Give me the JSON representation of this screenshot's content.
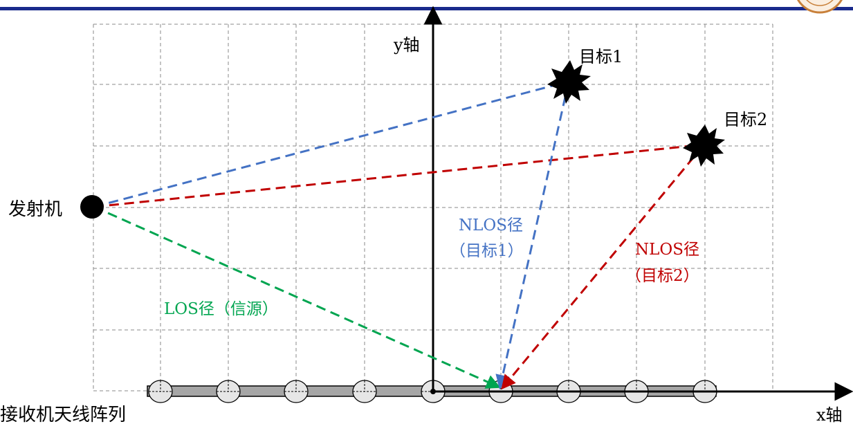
{
  "labels": {
    "y_axis": "y轴",
    "x_axis": "x轴",
    "transmitter": "发射机",
    "receiver_array": "接收机天线阵列",
    "target1": "目标1",
    "target2": "目标2",
    "nlos1_line1": "NLOS径",
    "nlos1_line2": "（目标1）",
    "nlos2_line1": "NLOS径",
    "nlos2_line2": "（目标2）",
    "los": "LOS径（信源）"
  },
  "colors": {
    "header_bar": "#1a2a8c",
    "grid": "#8a8a8a",
    "axis": "#000000",
    "nlos_target1": "#4472c4",
    "nlos_target2": "#c00000",
    "los": "#00a550",
    "array_bar": "#a6a6a6",
    "antenna_fill": "#e6e6e6",
    "logo_ring": "#c8803a"
  },
  "diagram": {
    "antenna_count": 9,
    "grid": true,
    "icons": [
      "transmitter-icon",
      "target1-starburst-icon",
      "target2-starburst-icon",
      "antenna-icon",
      "university-logo-icon"
    ]
  }
}
